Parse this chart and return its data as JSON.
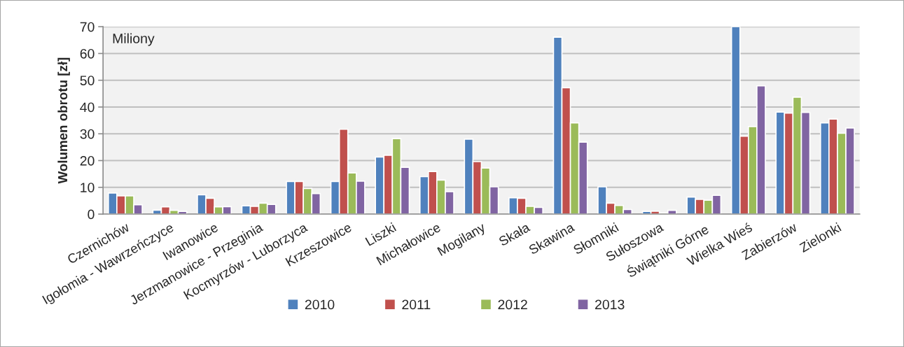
{
  "chart_data": {
    "type": "bar",
    "ylabel": "Wolumen obrotu [zł]",
    "annotations": [
      "Miliony"
    ],
    "categories": [
      "Czernichów",
      "Igołomia - Wawrzeńczyce",
      "Iwanowice",
      "Jerzmanowice - Przeginia",
      "Kocmyrzów - Luborzyca",
      "Krzeszowice",
      "Liszki",
      "Michałowice",
      "Mogilany",
      "Skała",
      "Skawina",
      "Słomniki",
      "Sułoszowa",
      "Świątniki Górne",
      "Wielka Wieś",
      "Zabierzów",
      "Zielonki"
    ],
    "series": [
      {
        "name": "2010",
        "color": "#4f81bd",
        "values": [
          7.9,
          1.5,
          7.2,
          3.1,
          12.2,
          12.2,
          21.3,
          14.0,
          28.0,
          6.1,
          66.1,
          10.2,
          1.0,
          6.4,
          70,
          38.1,
          34.1
        ]
      },
      {
        "name": "2011",
        "color": "#c0504d",
        "values": [
          6.8,
          2.7,
          5.9,
          2.9,
          12.2,
          31.7,
          22.0,
          15.9,
          19.6,
          5.9,
          47.2,
          4.1,
          1.1,
          5.5,
          29.1,
          37.7,
          35.5
        ]
      },
      {
        "name": "2012",
        "color": "#9bbb59",
        "values": [
          6.8,
          1.4,
          2.7,
          4.1,
          9.6,
          15.4,
          28.2,
          12.7,
          17.2,
          2.9,
          34.1,
          3.2,
          0.5,
          5.2,
          32.7,
          43.7,
          30.2
        ]
      },
      {
        "name": "2013",
        "color": "#8064a2",
        "values": [
          3.5,
          1.0,
          2.8,
          3.6,
          7.7,
          12.3,
          17.5,
          8.4,
          10.2,
          2.5,
          26.9,
          1.7,
          1.4,
          7.0,
          47.9,
          38.0,
          32.2
        ]
      }
    ],
    "ylim": [
      0,
      70
    ],
    "yticks": [
      0,
      10,
      20,
      30,
      40,
      50,
      60,
      70
    ],
    "grid": "y",
    "legend": "bottom"
  }
}
